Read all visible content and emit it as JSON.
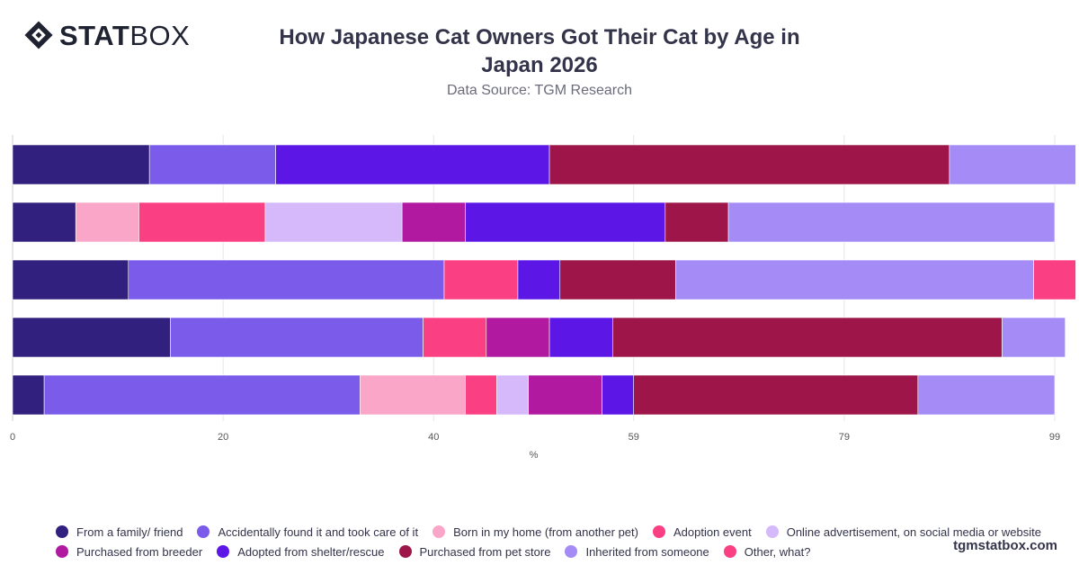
{
  "header": {
    "logo_bold": "STAT",
    "logo_light": "BOX",
    "title": "How Japanese Cat Owners Got Their Cat by Age in Japan 2026",
    "subtitle": "Data Source: TGM Research"
  },
  "footer": {
    "credit": "tgmstatbox.com"
  },
  "chart_data": {
    "type": "bar",
    "orientation": "horizontal",
    "stacked": true,
    "title": "How Japanese Cat Owners Got Their Cat by Age in Japan 2026",
    "subtitle": "Data Source: TGM Research",
    "xlabel": "%",
    "ylabel": "",
    "xlim": [
      0,
      99
    ],
    "xticks": [
      0,
      20,
      40,
      59,
      79,
      99
    ],
    "grid": true,
    "legend_position": "bottom",
    "categories": [
      "",
      "",
      "",
      "",
      ""
    ],
    "series": [
      {
        "name": "From a family/ friend",
        "color": "#32207e",
        "values": [
          13,
          6,
          11,
          15,
          3
        ]
      },
      {
        "name": "Accidentally found it and took care of it",
        "color": "#7b5cea",
        "values": [
          12,
          0,
          30,
          24,
          30
        ]
      },
      {
        "name": "Born in my home (from another pet)",
        "color": "#f9a6c9",
        "values": [
          0,
          6,
          0,
          0,
          10
        ]
      },
      {
        "name": "Adoption event",
        "color": "#fb3f83",
        "values": [
          0,
          12,
          7,
          6,
          3
        ]
      },
      {
        "name": "Online advertisement, on social media or website",
        "color": "#d5b9fb",
        "values": [
          0,
          13,
          0,
          0,
          3
        ]
      },
      {
        "name": "Purchased from breeder",
        "color": "#b11aa0",
        "values": [
          0,
          6,
          0,
          6,
          7
        ]
      },
      {
        "name": "Adopted from shelter/rescue",
        "color": "#5c16e6",
        "values": [
          26,
          19,
          4,
          6,
          3
        ]
      },
      {
        "name": "Purchased from pet store",
        "color": "#9d1549",
        "values": [
          38,
          6,
          11,
          37,
          27
        ]
      },
      {
        "name": "Inherited from someone",
        "color": "#a48bf6",
        "values": [
          12,
          31,
          34,
          6,
          13
        ]
      },
      {
        "name": "Other, what?",
        "color": "#fb3f83",
        "values": [
          0,
          0,
          4,
          0,
          0
        ]
      }
    ]
  }
}
